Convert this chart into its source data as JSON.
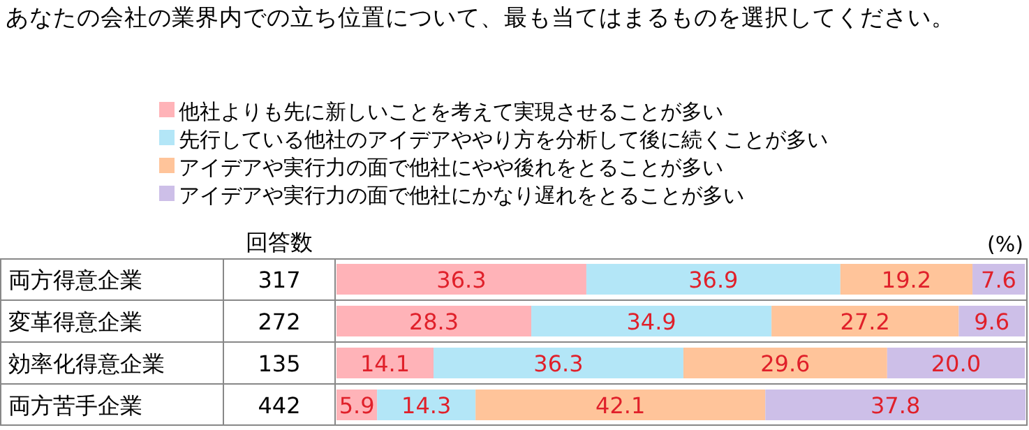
{
  "chart_data": [
    {
      "type": "bar",
      "title": "あなたの会社の業界内での立ち位置について、最も当てはまるものを選択してください。",
      "orientation": "horizontal",
      "stacked": true,
      "data_labels": true,
      "legend": "top",
      "xlim": [
        0,
        100
      ],
      "annotations": [
        "(%)"
      ],
      "categories": [
        "両方得意企業",
        "変革得意企業",
        "効率化得意企業",
        "両方苦手企業"
      ],
      "series": [
        {
          "name": "他社よりも先に新しいことを考えて実現させることが多い",
          "color": "#ffb3b8",
          "values": [
            36.3,
            28.3,
            14.1,
            5.9
          ]
        },
        {
          "name": "先行している他社のアイデアややり方を分析して後に続くことが多い",
          "color": "#b3e6f7",
          "values": [
            36.9,
            34.9,
            36.3,
            14.3
          ]
        },
        {
          "name": "アイデアや実行力の面で他社にやや後れをとることが多い",
          "color": "#ffc49a",
          "values": [
            19.2,
            27.2,
            29.6,
            42.1
          ]
        },
        {
          "name": "アイデアや実行力の面で他社にかなり遅れをとることが多い",
          "color": "#cdbfe8",
          "values": [
            7.6,
            9.6,
            20.0,
            37.8
          ],
          "value_labels": [
            "7.6",
            "9.6",
            "20.0",
            "37.8"
          ]
        }
      ]
    },
    {
      "type": "other",
      "title": "回答数",
      "values": [
        317,
        272,
        135,
        442
      ],
      "data_labels": true
    }
  ]
}
